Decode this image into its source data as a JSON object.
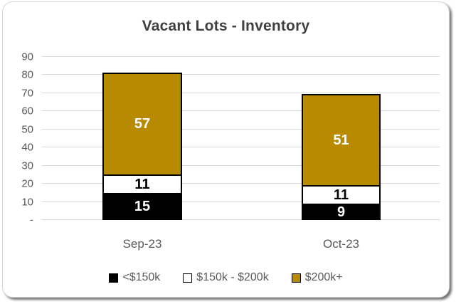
{
  "chart_data": {
    "type": "bar",
    "stacked": true,
    "title": "Vacant Lots - Inventory",
    "categories": [
      "Sep-23",
      "Oct-23"
    ],
    "series": [
      {
        "name": "<$150k",
        "values": [
          15,
          9
        ],
        "color": "#000000",
        "label_color": "#ffffff"
      },
      {
        "name": "$150k - $200k",
        "values": [
          11,
          11
        ],
        "color": "#ffffff",
        "label_color": "#000000"
      },
      {
        "name": "$200k+",
        "values": [
          57,
          51
        ],
        "color": "#B78A00",
        "label_color": "#ffffff"
      }
    ],
    "totals": [
      83,
      71
    ],
    "ylim": [
      0,
      90
    ],
    "ytick_step": 10,
    "ytick_labels": [
      "-",
      "10",
      "20",
      "30",
      "40",
      "50",
      "60",
      "70",
      "80",
      "90"
    ],
    "grid": true,
    "legend_position": "bottom",
    "colors": {
      "title_text": "#404040",
      "axis_text": "#595959",
      "gridline": "#d9d9d9",
      "bar_outline": "#000000"
    }
  }
}
